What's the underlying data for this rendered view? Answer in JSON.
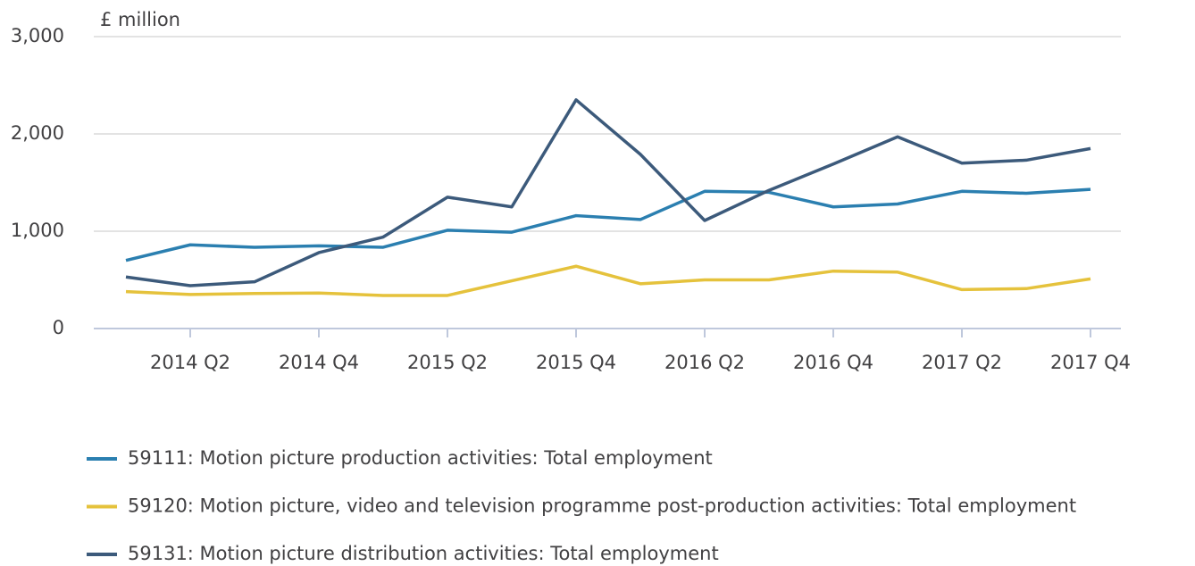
{
  "chart_data": {
    "type": "line",
    "y_label": "£ million",
    "categories": [
      null,
      "2014 Q2",
      null,
      "2014 Q4",
      null,
      "2015 Q2",
      null,
      "2015 Q4",
      null,
      "2016 Q2",
      null,
      "2016 Q4",
      null,
      "2017 Q2",
      null,
      "2017 Q4"
    ],
    "series": [
      {
        "name": "59111: Motion picture production activities: Total employment",
        "color": "#2b7fb0",
        "values": [
          700,
          860,
          835,
          850,
          835,
          1010,
          990,
          1160,
          1120,
          1410,
          1400,
          1250,
          1280,
          1410,
          1390,
          1430
        ]
      },
      {
        "name": "59120: Motion picture, video and television programme post-production activities: Total employment",
        "color": "#e5c23c",
        "values": [
          380,
          350,
          360,
          365,
          340,
          340,
          490,
          640,
          460,
          500,
          500,
          590,
          580,
          400,
          410,
          510
        ]
      },
      {
        "name": "59131: Motion picture distribution activities: Total employment",
        "color": "#3c5a7b",
        "values": [
          530,
          440,
          480,
          780,
          940,
          1350,
          1250,
          2350,
          1790,
          1110,
          1420,
          1690,
          1970,
          1700,
          1730,
          1850
        ]
      }
    ],
    "ylim": [
      0,
      3000
    ],
    "yticks": [
      0,
      {
        "value": 1000,
        "label": "1,000"
      },
      {
        "value": 2000,
        "label": "2,000"
      },
      {
        "value": 3000,
        "label": "3,000"
      }
    ],
    "grid": true
  }
}
